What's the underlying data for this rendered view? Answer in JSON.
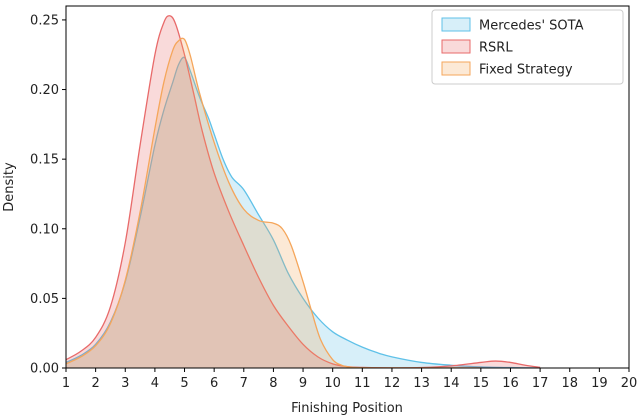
{
  "chart_data": {
    "type": "area",
    "title": "",
    "xlabel": "Finishing Position",
    "ylabel": "Density",
    "xlim": [
      1,
      20
    ],
    "ylim": [
      0,
      0.26
    ],
    "x_ticks": [
      1,
      2,
      3,
      4,
      5,
      6,
      7,
      8,
      9,
      10,
      11,
      12,
      13,
      14,
      15,
      16,
      17,
      18,
      19,
      20
    ],
    "y_ticks": [
      0.0,
      0.05,
      0.1,
      0.15,
      0.2,
      0.25
    ],
    "y_tick_labels": [
      "0.00",
      "0.05",
      "0.10",
      "0.15",
      "0.20",
      "0.25"
    ],
    "grid": false,
    "legend_position": "top-right",
    "series": [
      {
        "name": "Mercedes' SOTA",
        "color": "#5fc1e8",
        "x": [
          1,
          1.5,
          2,
          2.5,
          3,
          3.5,
          4,
          4.3,
          4.6,
          4.8,
          5,
          5.2,
          5.5,
          5.8,
          6,
          6.3,
          6.6,
          7,
          7.5,
          8,
          8.5,
          9,
          9.5,
          10,
          10.5,
          11,
          11.5,
          12,
          13,
          14,
          15,
          16,
          17
        ],
        "y": [
          0.004,
          0.009,
          0.017,
          0.033,
          0.062,
          0.108,
          0.16,
          0.185,
          0.205,
          0.218,
          0.223,
          0.213,
          0.195,
          0.18,
          0.168,
          0.15,
          0.137,
          0.128,
          0.11,
          0.092,
          0.068,
          0.05,
          0.036,
          0.026,
          0.02,
          0.015,
          0.011,
          0.008,
          0.004,
          0.002,
          0.0008,
          0.0003,
          0.0001
        ]
      },
      {
        "name": "RSRL",
        "color": "#e86a6a",
        "x": [
          1,
          1.5,
          2,
          2.5,
          3,
          3.5,
          4,
          4.3,
          4.5,
          4.7,
          5,
          5.3,
          5.6,
          6,
          6.5,
          7,
          7.5,
          8,
          8.5,
          9,
          9.5,
          10,
          10.5,
          11,
          12,
          13,
          14,
          15,
          15.5,
          16,
          16.5,
          17
        ],
        "y": [
          0.006,
          0.012,
          0.022,
          0.044,
          0.09,
          0.16,
          0.225,
          0.248,
          0.253,
          0.247,
          0.225,
          0.198,
          0.17,
          0.14,
          0.112,
          0.088,
          0.065,
          0.045,
          0.03,
          0.017,
          0.008,
          0.003,
          0.001,
          0.0004,
          0.0001,
          0.0003,
          0.0015,
          0.004,
          0.005,
          0.004,
          0.002,
          0.0005
        ]
      },
      {
        "name": "Fixed Strategy",
        "color": "#f5a65b",
        "x": [
          1,
          1.5,
          2,
          2.5,
          3,
          3.5,
          4,
          4.3,
          4.6,
          4.8,
          5,
          5.2,
          5.5,
          6,
          6.5,
          7,
          7.5,
          8,
          8.3,
          8.6,
          9,
          9.3,
          9.6,
          10,
          10.3,
          10.6,
          11,
          12,
          13,
          14,
          15
        ],
        "y": [
          0.003,
          0.008,
          0.016,
          0.032,
          0.063,
          0.112,
          0.172,
          0.205,
          0.228,
          0.235,
          0.236,
          0.224,
          0.198,
          0.162,
          0.133,
          0.114,
          0.106,
          0.104,
          0.1,
          0.088,
          0.062,
          0.04,
          0.02,
          0.006,
          0.002,
          0.0006,
          0.0002,
          0.0001,
          0.0001,
          0.0001,
          0.0001
        ]
      }
    ]
  }
}
